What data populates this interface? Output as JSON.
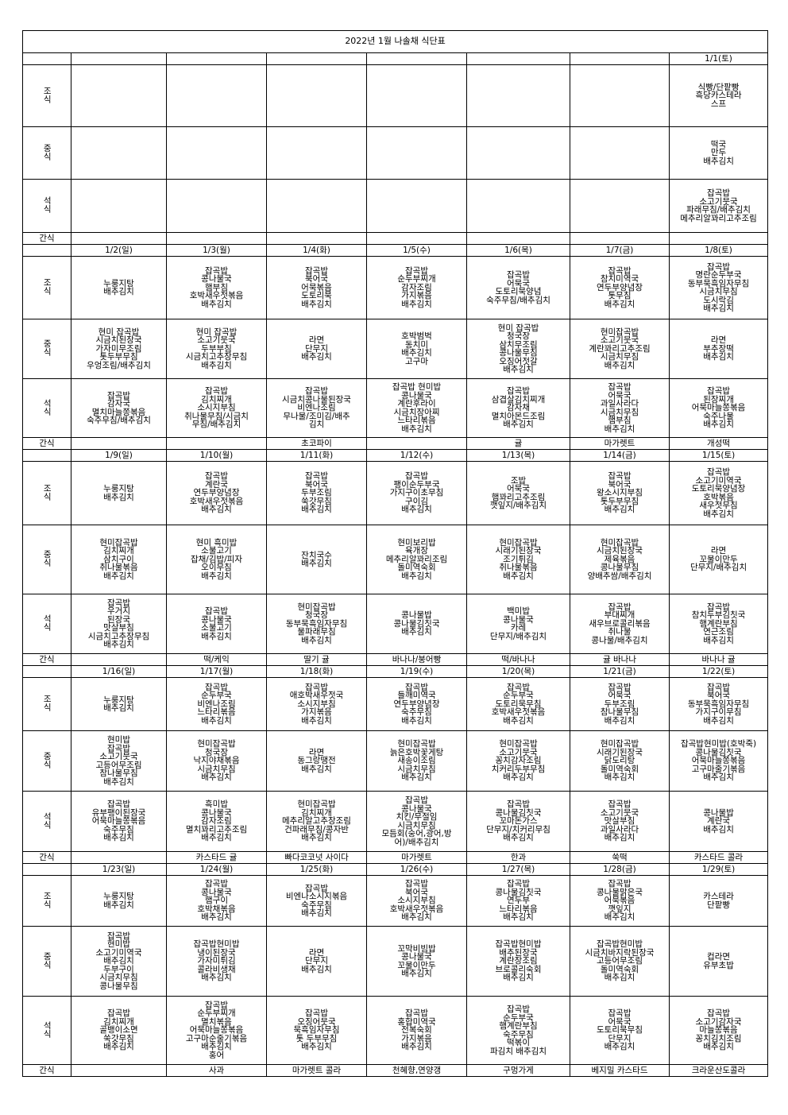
{
  "title": "2022년 1월     나솔채 식단표",
  "meal_labels": {
    "breakfast": "조식",
    "lunch": "중식",
    "dinner": "석식",
    "snack": "간식"
  },
  "weeks": [
    {
      "dates": [
        "",
        "",
        "",
        "",
        "",
        "",
        "1/1(토)"
      ],
      "breakfast": [
        [],
        [],
        [],
        [],
        [],
        [],
        [
          "식빵/단팥빵",
          "흑당카스테라",
          "스프"
        ]
      ],
      "lunch": [
        [],
        [],
        [],
        [],
        [],
        [],
        [
          "떡국",
          "만두",
          "배추김치"
        ]
      ],
      "dinner": [
        [],
        [],
        [],
        [],
        [],
        [],
        [
          "잡곡밥",
          "소고기뭇국",
          "파래무침/배추김치",
          "메추리알꽈리고추조림"
        ]
      ],
      "snack": [
        "",
        "",
        "",
        "",
        "",
        "",
        ""
      ]
    },
    {
      "dates": [
        "1/2(일)",
        "1/3(월)",
        "1/4(화)",
        "1/5(수)",
        "1/6(목)",
        "1/7(금)",
        "1/8(토)"
      ],
      "breakfast": [
        [
          "누룽지탕",
          "배추김치"
        ],
        [
          "잡곡밥",
          "콩나물국",
          "햄부침",
          "호박새우젓볶음",
          "배추김치"
        ],
        [
          "잡곡밥",
          "북어국",
          "어묵볶음",
          "도토리묵",
          "배추김치"
        ],
        [
          "잡곡밥",
          "순두부찌개",
          "감자조림",
          "가지볶음",
          "배추김치"
        ],
        [
          "잡곡밥",
          "어묵국",
          "도토리묵양념",
          "숙주무침/배추김치"
        ],
        [
          "잡곡밥",
          "참치미역국",
          "연두부양념장",
          "톳무침",
          "배추김치"
        ],
        [
          "잡곡밥",
          "명란순두부국",
          "동부묵흑임자무침",
          "시금치무침",
          "도시락김",
          "배추김치"
        ]
      ],
      "lunch": [
        [
          "현미 잡곡밥",
          "시금치된장국",
          "가자미무조림",
          "톳두부무침",
          "우엉조림/배추김치"
        ],
        [
          "현미 잡곡밥",
          "소고기뭇국",
          "두부부침",
          "시금치고추장무침",
          "배추김치"
        ],
        [
          "라면",
          "단무지",
          "배추김치"
        ],
        [
          "호박범벅",
          "동치미",
          "배추김치",
          "고구마"
        ],
        [
          "현미 잡곡밥",
          "청국장",
          "삼치무조림",
          "콩나물무침",
          "오징어젓갈",
          "배추김치"
        ],
        [
          "현미잡곡밥",
          "소고기뭇국",
          "계란꽈리고추조림",
          "시금치무침",
          "배추김치"
        ],
        [
          "라면",
          "부추장떡",
          "배추김치"
        ]
      ],
      "dinner": [
        [
          "잡곡밥",
          "감자국",
          "멸치마늘쫑볶음",
          "숙주무침/배추김치"
        ],
        [
          "잡곡밥",
          "김치찌개",
          "소시지부침",
          "취나물무침/시금치",
          "무침/배추김치"
        ],
        [
          "잡곡밥",
          "시금치콩나물된장국",
          "비엔나조림",
          "무나물/조미김/배추",
          "김치"
        ],
        [
          "잡곡밥 현미밥",
          "콩나물국",
          "계란후라이",
          "시금치장아찌",
          "느타리볶음",
          "배추김치"
        ],
        [
          "잡곡밥",
          "삼겹살김치찌개",
          "감자채",
          "멸치아몬드조림",
          "배추김치"
        ],
        [
          "잡곡밥",
          "어묵국",
          "과일사라다",
          "시금치무침",
          "햄부침",
          "배추김치"
        ],
        [
          "잡곡밥",
          "된장찌개",
          "어묵마늘쫑볶음",
          "숙주나물",
          "배추김치"
        ]
      ],
      "snack": [
        "",
        "",
        "초코파이",
        "",
        "귤",
        "마가렛트",
        "개성떡"
      ]
    },
    {
      "dates": [
        "1/9(일)",
        "1/10(월)",
        "1/11(화)",
        "1/12(수)",
        "1/13(목)",
        "1/14(금)",
        "1/15(토)"
      ],
      "breakfast": [
        [
          "누룽지탕",
          "배추김치"
        ],
        [
          "잡곡밥",
          "계란국",
          "연두부양념장",
          "호박새우젓볶음",
          "배추김치"
        ],
        [
          "잡곡밥",
          "북어국",
          "두부조림",
          "쑥갓무침",
          "배추김치"
        ],
        [
          "잡곡밥",
          "팽이순두부국",
          "가지구이초무침",
          "구이김",
          "배추김치"
        ],
        [
          "조밥",
          "어묵국",
          "햄꽈리고추조림",
          "깻잎지/배추김치"
        ],
        [
          "잡곡밥",
          "북어국",
          "왕소시지부침",
          "톳두부무침",
          "배추김치"
        ],
        [
          "잡곡밥",
          "소고기미역국",
          "도토리묵양념장",
          "호박볶음",
          "새우젓무침",
          "배추김치"
        ]
      ],
      "lunch": [
        [
          "현미잡곡밥",
          "김치찌개",
          "삼치구이",
          "취나물볶음",
          "배추김치"
        ],
        [
          "현미 흑미밥",
          "소불고기",
          "잡채/김밥/피자",
          "오이무침",
          "배추김치"
        ],
        [
          "잔치국수",
          "배추김치"
        ],
        [
          "현미보리밥",
          "육개장",
          "메추리알꽈리조림",
          "돌미역숙회",
          "배추김치"
        ],
        [
          "현미잡곡밥",
          "시래기된장국",
          "조기튀김",
          "취나물볶음",
          "배추김치"
        ],
        [
          "현미잡곡밥",
          "시금치된장국",
          "제육볶음",
          "콩나물무침",
          "양배추쌈/배추김치"
        ],
        [
          "라면",
          "꼬물이만두",
          "단무지/배추김치"
        ]
      ],
      "dinner": [
        [
          "잡곡밥",
          "우거지",
          "된장국",
          "맛살부침",
          "시금치고추장무침",
          "배추김치"
        ],
        [
          "잡곡밥",
          "콩나물국",
          "소불고기",
          "배추김치"
        ],
        [
          "현미잡곡밥",
          "청국장",
          "동부묵흑임자무침",
          "물파래무침",
          "배추김치"
        ],
        [
          "콩나물밥",
          "콩나물김칫국",
          "배추김치"
        ],
        [
          "백미밥",
          "콩나물국",
          "카레",
          "단무지/배추김치"
        ],
        [
          "잡곡밥",
          "부대찌개",
          "새우브로콜리볶음",
          "취나물",
          "콩나물/배추김치"
        ],
        [
          "잡곡밥",
          "참치두부김칫국",
          "햄계란부침",
          "연근조림",
          "배추김치"
        ]
      ],
      "snack": [
        "",
        "떡/케익",
        "딸기 귤",
        "바나나/붕어빵",
        "떡/바나나",
        "귤 바나나",
        "바나나 귤"
      ]
    },
    {
      "dates": [
        "1/16(일)",
        "1/17(월)",
        "1/18(화)",
        "1/19(수)",
        "1/20(목)",
        "1/21(금)",
        "1/22(토)"
      ],
      "breakfast": [
        [
          "누룽지탕",
          "배추김치"
        ],
        [
          "잡곡밥",
          "순두부국",
          "비엔나조림",
          "느타리볶음",
          "배추김치"
        ],
        [
          "잡곡밥",
          "애호박새우젓국",
          "소시지부침",
          "가지볶음",
          "배추김치"
        ],
        [
          "잡곡밥",
          "들깨미역국",
          "연두부양념장",
          "숙주무침",
          "배추김치"
        ],
        [
          "잡곡밥",
          "순두부국",
          "도토리묵무침",
          "호박새우젓볶음",
          "배추김치"
        ],
        [
          "잡곡밥",
          "어묵국",
          "두부조림",
          "참나물무침",
          "배추김치"
        ],
        [
          "잡곡밥",
          "북어국",
          "동부묵흑임자무침",
          "가지구이무침",
          "배추김치"
        ]
      ],
      "lunch": [
        [
          "현미밥",
          "잡곡밥",
          "소고기뭇국",
          "고등어무조림",
          "참나물무침",
          "배추김치"
        ],
        [
          "현미잡곡밥",
          "청국장",
          "낙지야채볶음",
          "시금치무침",
          "배추김치"
        ],
        [
          "라면",
          "동그랑땡전",
          "배추김치"
        ],
        [
          "현미잡곡밥",
          "늙은호박꽃게탕",
          "새송이조림",
          "시금치무침",
          "배추김치"
        ],
        [
          "현미잡곡밥",
          "소고기뭇국",
          "꽁치감자조림",
          "치커리두부무침",
          "배추김치"
        ],
        [
          "현미잡곡밥",
          "시래기된장국",
          "닭도리탕",
          "돌미역숙회",
          "배추김치"
        ],
        [
          "잡곡밥현미밥(호박죽)",
          "콩나물김칫국",
          "어묵마늘쫑볶음",
          "고구마줄기볶음",
          "배추김치"
        ]
      ],
      "dinner": [
        [
          "잡곡밥",
          "유부팽이된장국",
          "어묵마늘쫑볶음",
          "숙주무침",
          "배추김치"
        ],
        [
          "흑미밥",
          "콩나물국",
          "감자조림",
          "멸치꽈리고추조림",
          "배추김치"
        ],
        [
          "현미잡곡밥",
          "김치찌개",
          "메추리알고추장조림",
          "건파래무침/콩자반",
          "배추김치"
        ],
        [
          "잡곡밥",
          "콩나물국",
          "치킨/무절임",
          "시금치무침",
          "모듬회(숭어,광어,방",
          "어)/배추김치"
        ],
        [
          "잡곡밥",
          "콩나물김칫국",
          "꼬마돈가스",
          "단무지/치커리무침",
          "배추김치"
        ],
        [
          "잡곡밥",
          "소고기뭇국",
          "맛살부침",
          "과일사라다",
          "배추김치"
        ],
        [
          "콩나물밥",
          "계란국",
          "배추김치"
        ]
      ],
      "snack": [
        "",
        "카스타드 귤",
        "빠다코코넛 사이다",
        "마가렛트",
        "한과",
        "쑥떡",
        "카스타드 콜라"
      ]
    },
    {
      "dates": [
        "1/23(일)",
        "1/24(월)",
        "1/25(화)",
        "1/26(수)",
        "1/27(목)",
        "1/28(금)",
        "1/29(토)"
      ],
      "breakfast": [
        [
          "누룽지탕",
          "배추김치"
        ],
        [
          "잡곡밥",
          "콩나물국",
          "햄구이",
          "호박채볶음",
          "배추김치"
        ],
        [
          "잡곡밥",
          "비엔나소시지볶음",
          "숙주무침",
          "배추김치"
        ],
        [
          "잡곡밥",
          "북어국",
          "소시지부침",
          "호박새우젓볶음",
          "배추김치"
        ],
        [
          "잡곡밥",
          "콩나물김칫국",
          "연두부",
          "느타리볶음",
          "배추김치"
        ],
        [
          "잡곡밥",
          "콩나물맑은국",
          "어묵볶음",
          "깻잎지",
          "배추김치"
        ],
        [
          "카스테라",
          "단팥빵"
        ]
      ],
      "lunch": [
        [
          "잡곡밥",
          "현미밥",
          "소고기미역국",
          "배추김치",
          "두부구이",
          "시금치무침",
          "콩나물무침"
        ],
        [
          "잡곡밥현미밥",
          "냉이된장국",
          "가자미튀김",
          "콜라비생채",
          "배추김치"
        ],
        [
          "라면",
          "단무지",
          "배추김치"
        ],
        [
          "꼬막비빔밥",
          "콩나물국",
          "꼬물이만두",
          "배추김치"
        ],
        [
          "잡곡밥현미밥",
          "배추된장국",
          "계란장조림",
          "브로콜리숙회",
          "배추김치"
        ],
        [
          "잡곡밥현미밥",
          "시금치바지락된장국",
          "고등어무조림",
          "돌미역숙회",
          "배추김치"
        ],
        [
          "컵라면",
          "유부초밥"
        ]
      ],
      "dinner": [
        [
          "잡곡밥",
          "김치찌개",
          "골뱅이소면",
          "쑥갓무침",
          "배추김치"
        ],
        [
          "잡곡밥",
          "순두부찌개",
          "멸치볶음",
          "어묵마늘쫑볶음",
          "고구마순줄기볶음",
          "배추김치",
          "홍어"
        ],
        [
          "잡곡밥",
          "오징어뭇국",
          "묵흑임자무침",
          "톳 두부무침",
          "배추김치"
        ],
        [
          "잡곡밥",
          "홍합미역국",
          "전복숙회",
          "가지볶음",
          "배추김치"
        ],
        [
          "잡곡밥",
          "순두부국",
          "햄계란부침",
          "숙주무침",
          "떡볶이",
          "파김치 배추김치"
        ],
        [
          "잡곡밥",
          "어묵국",
          "도토리묵무침",
          "단무지",
          "배추김치"
        ],
        [
          "잡곡밥",
          "소고기감자국",
          "마늘쫑볶음",
          "꽁치김치조림",
          "배추김치"
        ]
      ],
      "snack": [
        "",
        "사과",
        "마가렛트 콜라",
        "천혜향,연양갱",
        "구멍가게",
        "베지밀 카스타드",
        "크라운산도콜라"
      ]
    }
  ]
}
